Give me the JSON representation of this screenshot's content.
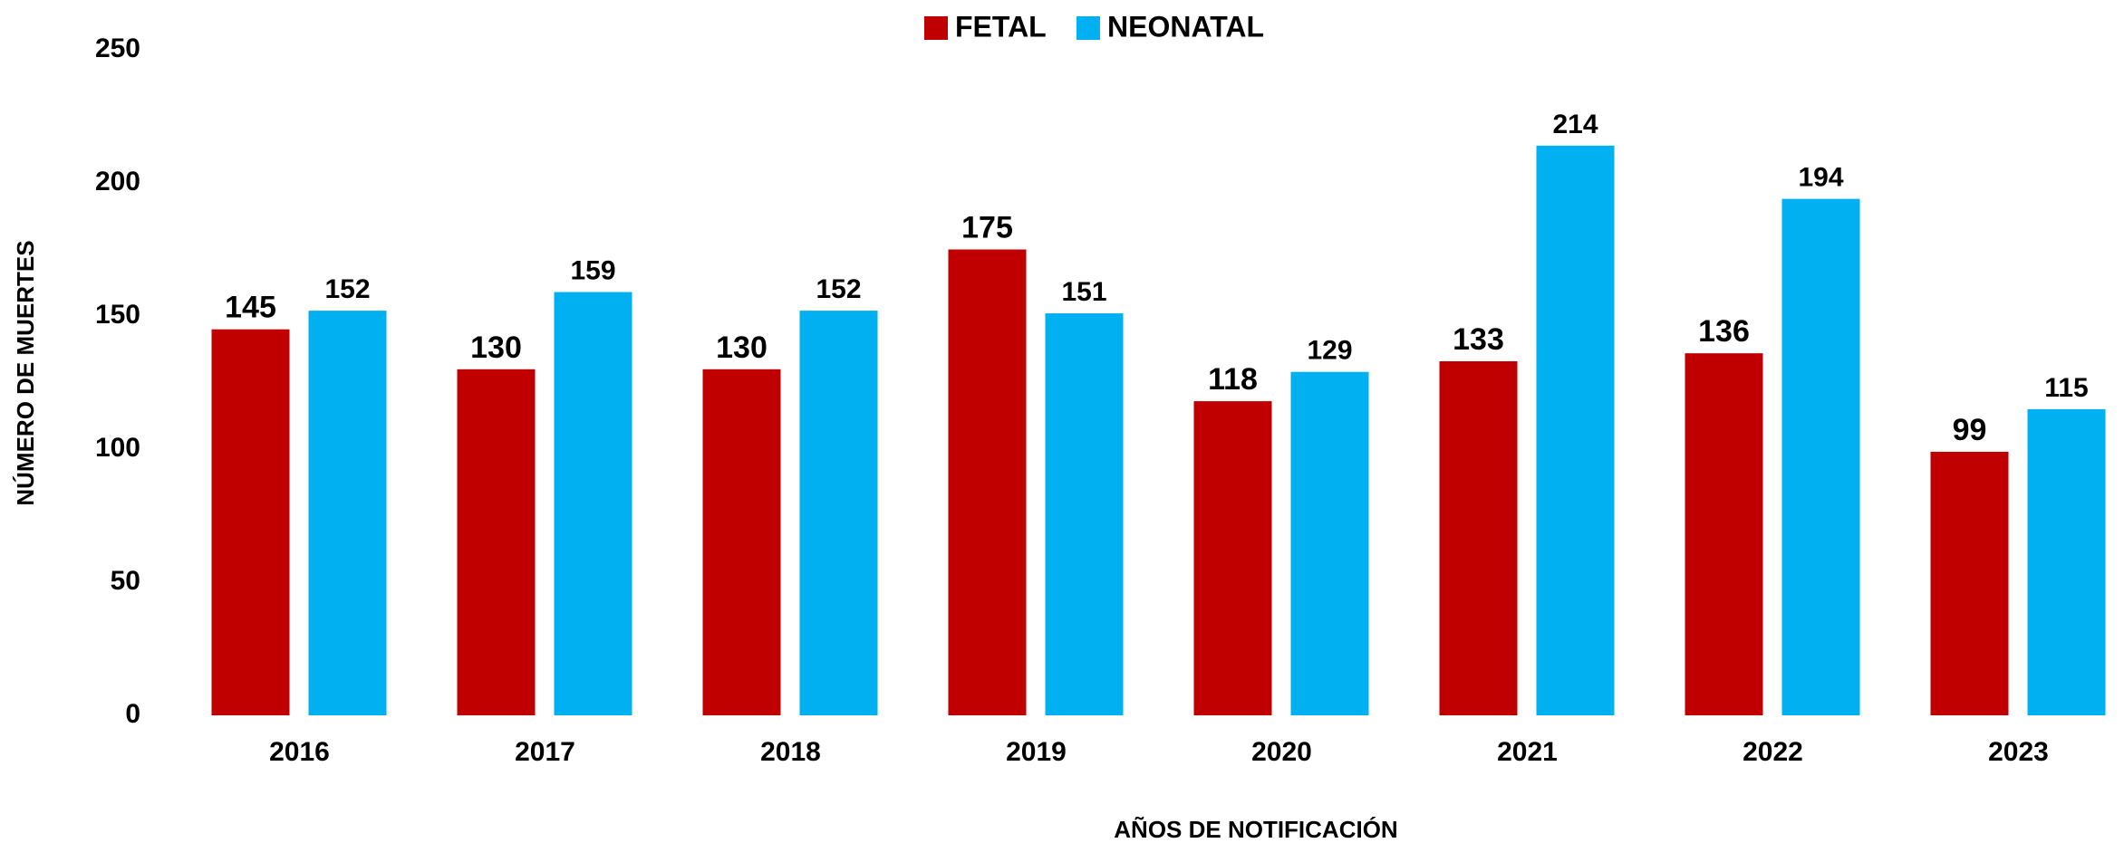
{
  "chart_data": {
    "type": "bar",
    "x_label": "AÑOS DE NOTIFICACIÓN",
    "y_label": "NÚMERO DE MUERTES",
    "categories": [
      "2016",
      "2017",
      "2018",
      "2019",
      "2020",
      "2021",
      "2022",
      "2023"
    ],
    "series": [
      {
        "name": "FETAL",
        "color": "#c00000",
        "values": [
          145,
          130,
          130,
          175,
          118,
          133,
          136,
          99
        ]
      },
      {
        "name": "NEONATAL",
        "color": "#00b0f0",
        "values": [
          152,
          159,
          152,
          151,
          129,
          214,
          194,
          115
        ]
      }
    ],
    "ylim": [
      0,
      250
    ],
    "yticks": [
      0,
      50,
      100,
      150,
      200,
      250
    ],
    "grid": false
  }
}
